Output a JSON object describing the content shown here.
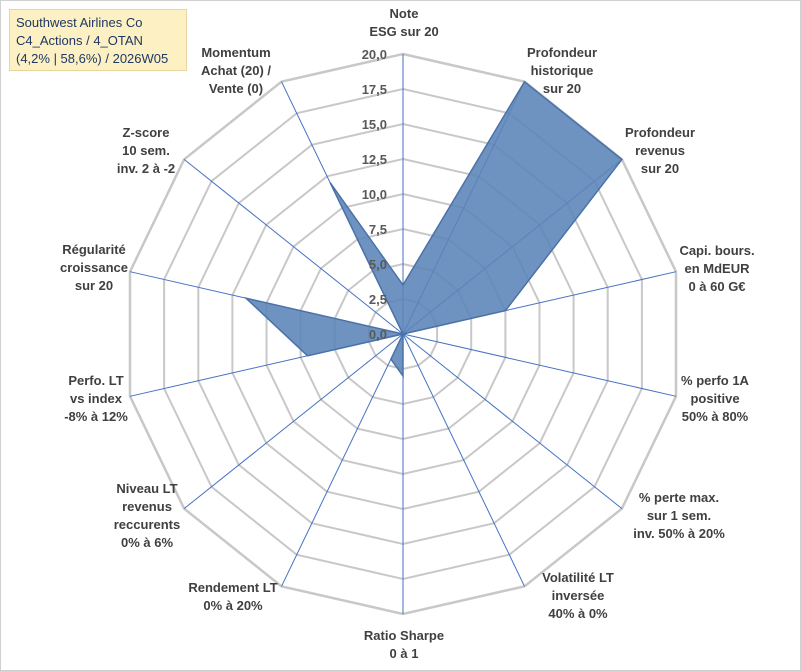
{
  "header": {
    "title_lines": [
      "Southwest Airlines Co",
      "C4_Actions / 4_OTAN",
      "(4,2% | 58,6%) / 2026W05"
    ]
  },
  "chart_data": {
    "type": "radar",
    "axes": [
      {
        "label": [
          "Note",
          "ESG sur 20"
        ]
      },
      {
        "label": [
          "Profondeur",
          "historique",
          "sur 20"
        ]
      },
      {
        "label": [
          "Profondeur",
          "revenus",
          "sur 20"
        ]
      },
      {
        "label": [
          "Capi. bours.",
          "en MdEUR",
          "0 à 60 G€"
        ]
      },
      {
        "label": [
          "% perfo 1A",
          "positive",
          "50% à 80%"
        ]
      },
      {
        "label": [
          "% perte max.",
          "sur 1 sem.",
          "inv. 50% à 20%"
        ]
      },
      {
        "label": [
          "Volatilité LT",
          "inversée",
          "40% à 0%"
        ]
      },
      {
        "label": [
          "Ratio Sharpe",
          "0 à 1"
        ]
      },
      {
        "label": [
          "Rendement LT",
          "0% à 20%"
        ]
      },
      {
        "label": [
          "Niveau LT",
          "revenus",
          "reccurents",
          "0% à 6%"
        ]
      },
      {
        "label": [
          "Perfo. LT",
          "vs index",
          "-8% à 12%"
        ]
      },
      {
        "label": [
          "Régularité",
          "croissance",
          "sur 20"
        ]
      },
      {
        "label": [
          "Z-score",
          "10 sem.",
          "inv. 2 à -2"
        ]
      },
      {
        "label": [
          "Momentum",
          "Achat (20) /",
          "Vente (0)"
        ]
      }
    ],
    "values": [
      3.5,
      20,
      20,
      7.5,
      0,
      0,
      0,
      3,
      2,
      0,
      7,
      11.5,
      0,
      12
    ],
    "scale": {
      "min": 0,
      "max": 20,
      "step": 2.5
    },
    "tick_labels": [
      "0,0",
      "2,5",
      "5,0",
      "7,5",
      "10,0",
      "12,5",
      "15,0",
      "17,5",
      "20,0"
    ],
    "series_color": "#5b84b8",
    "grid_color": "#c8c8c8",
    "spoke_color": "#4472c4"
  }
}
